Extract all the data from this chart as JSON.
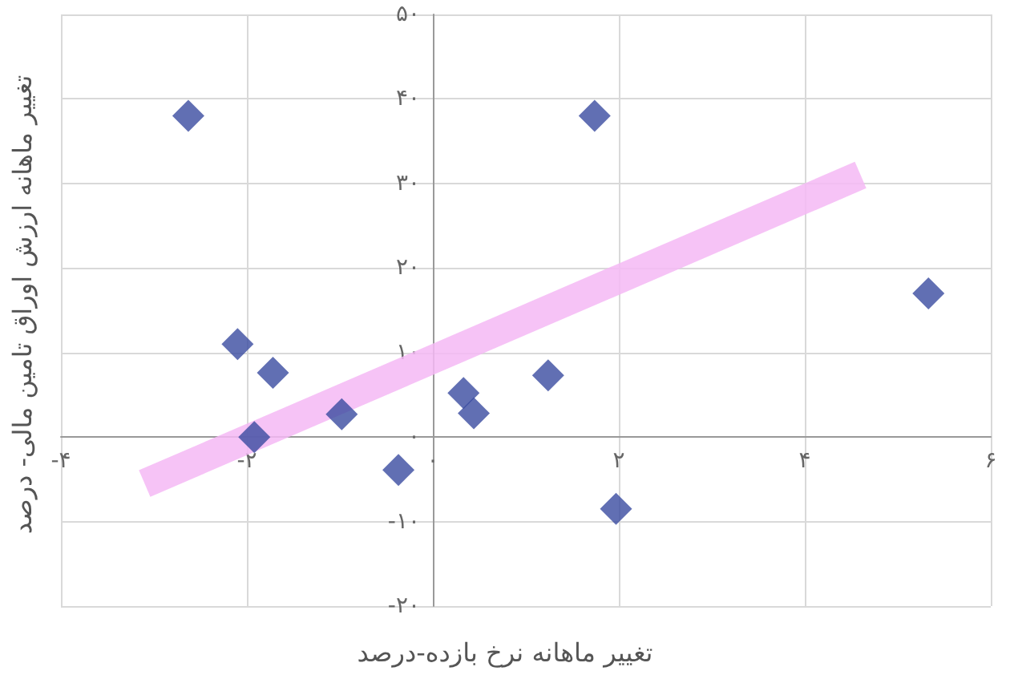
{
  "chart_data": {
    "type": "scatter",
    "xlabel": "تغییر ماهانه نرخ بازده-درصد",
    "ylabel": "تغییر ماهانه ارزش اوراق تامین مالی- درصد",
    "series": [
      {
        "color": "#3a4ba0",
        "x": [
          -2.63,
          1.74,
          5.33,
          -2.1,
          -1.72,
          -0.98,
          -1.92,
          -0.37,
          0.33,
          0.44,
          1.24,
          1.97
        ],
        "values": [
          38,
          38,
          17,
          11,
          7.6,
          2.7,
          0,
          -3.9,
          5.2,
          2.8,
          7.3,
          -8.5
        ]
      },
      {
        "type": "line",
        "marker": "none",
        "color": "#f5b8f5",
        "x": [
          -3.1,
          4.6
        ],
        "values": [
          -5.5,
          31
        ]
      }
    ],
    "marker": "diamond",
    "xlim": [
      -4,
      6
    ],
    "ylim": [
      -20,
      50
    ],
    "xticks": [
      {
        "value": -4,
        "label": "-۴"
      },
      {
        "value": -2,
        "label": "-۲"
      },
      {
        "value": 0,
        "label": "۰"
      },
      {
        "value": 2,
        "label": "۲"
      },
      {
        "value": 4,
        "label": "۴"
      },
      {
        "value": 6,
        "label": "۶"
      }
    ],
    "yticks": [
      {
        "value": -20,
        "label": "-۲۰"
      },
      {
        "value": -10,
        "label": "-۱۰"
      },
      {
        "value": 0,
        "label": "۰"
      },
      {
        "value": 10,
        "label": "۱۰"
      },
      {
        "value": 20,
        "label": "۲۰"
      },
      {
        "value": 30,
        "label": "۳۰"
      },
      {
        "value": 40,
        "label": "۴۰"
      },
      {
        "value": 50,
        "label": "۵۰"
      }
    ],
    "grid": true
  }
}
